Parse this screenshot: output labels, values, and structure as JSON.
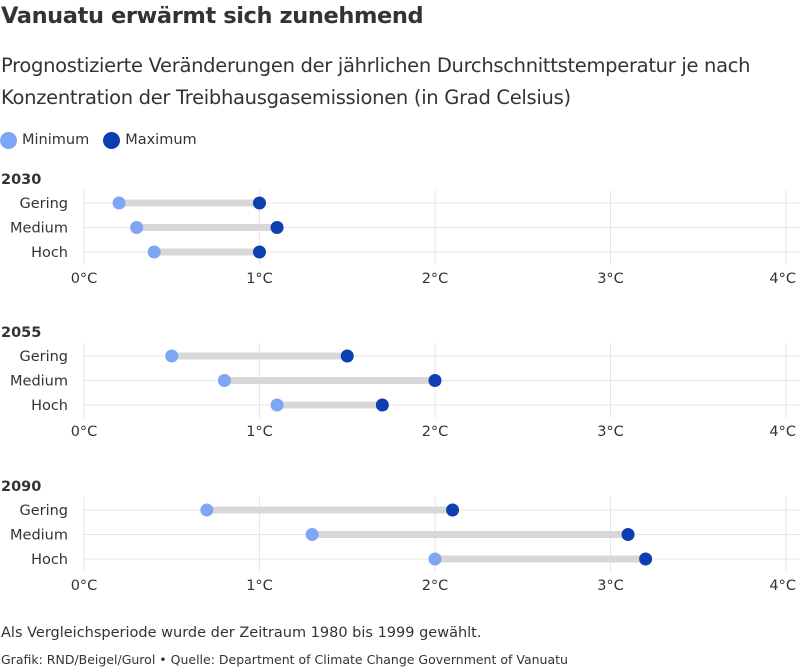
{
  "title": "Vanuatu erwärmt sich zunehmend",
  "subtitle": "Prognostizierte Veränderungen der jährlichen Durchschnittstemperatur je nach Konzentration der Treibhausgasemissionen (in Grad Celsius)",
  "legend": [
    {
      "label": "Minimum",
      "color": "#7fa6f4"
    },
    {
      "label": "Maximum",
      "color": "#0d3fb0"
    }
  ],
  "note": "Als Vergleichsperiode wurde der Zeitraum 1980 bis 1999 gewählt.",
  "source": "Grafik: RND/Beigel/Gurol • Quelle: Department of Climate Change Government of Vanuatu",
  "chart_data": [
    {
      "type": "dumbbell",
      "title": "2030",
      "categories": [
        "Gering",
        "Medium",
        "Hoch"
      ],
      "series": [
        {
          "name": "Minimum",
          "values": [
            0.2,
            0.3,
            0.4
          ]
        },
        {
          "name": "Maximum",
          "values": [
            1.0,
            1.1,
            1.0
          ]
        }
      ],
      "xlim": [
        0,
        4
      ],
      "xticks": [
        0,
        1,
        2,
        3,
        4
      ],
      "xtick_labels": [
        "0°C",
        "1°C",
        "2°C",
        "3°C",
        "4°C"
      ],
      "grid": true
    },
    {
      "type": "dumbbell",
      "title": "2055",
      "categories": [
        "Gering",
        "Medium",
        "Hoch"
      ],
      "series": [
        {
          "name": "Minimum",
          "values": [
            0.5,
            0.8,
            1.1
          ]
        },
        {
          "name": "Maximum",
          "values": [
            1.5,
            2.0,
            1.7
          ]
        }
      ],
      "xlim": [
        0,
        4
      ],
      "xticks": [
        0,
        1,
        2,
        3,
        4
      ],
      "xtick_labels": [
        "0°C",
        "1°C",
        "2°C",
        "3°C",
        "4°C"
      ],
      "grid": true
    },
    {
      "type": "dumbbell",
      "title": "2090",
      "categories": [
        "Gering",
        "Medium",
        "Hoch"
      ],
      "series": [
        {
          "name": "Minimum",
          "values": [
            0.7,
            1.3,
            2.0
          ]
        },
        {
          "name": "Maximum",
          "values": [
            2.1,
            3.1,
            3.2
          ]
        }
      ],
      "xlim": [
        0,
        4
      ],
      "xticks": [
        0,
        1,
        2,
        3,
        4
      ],
      "xtick_labels": [
        "0°C",
        "1°C",
        "2°C",
        "3°C",
        "4°C"
      ],
      "grid": true
    }
  ]
}
